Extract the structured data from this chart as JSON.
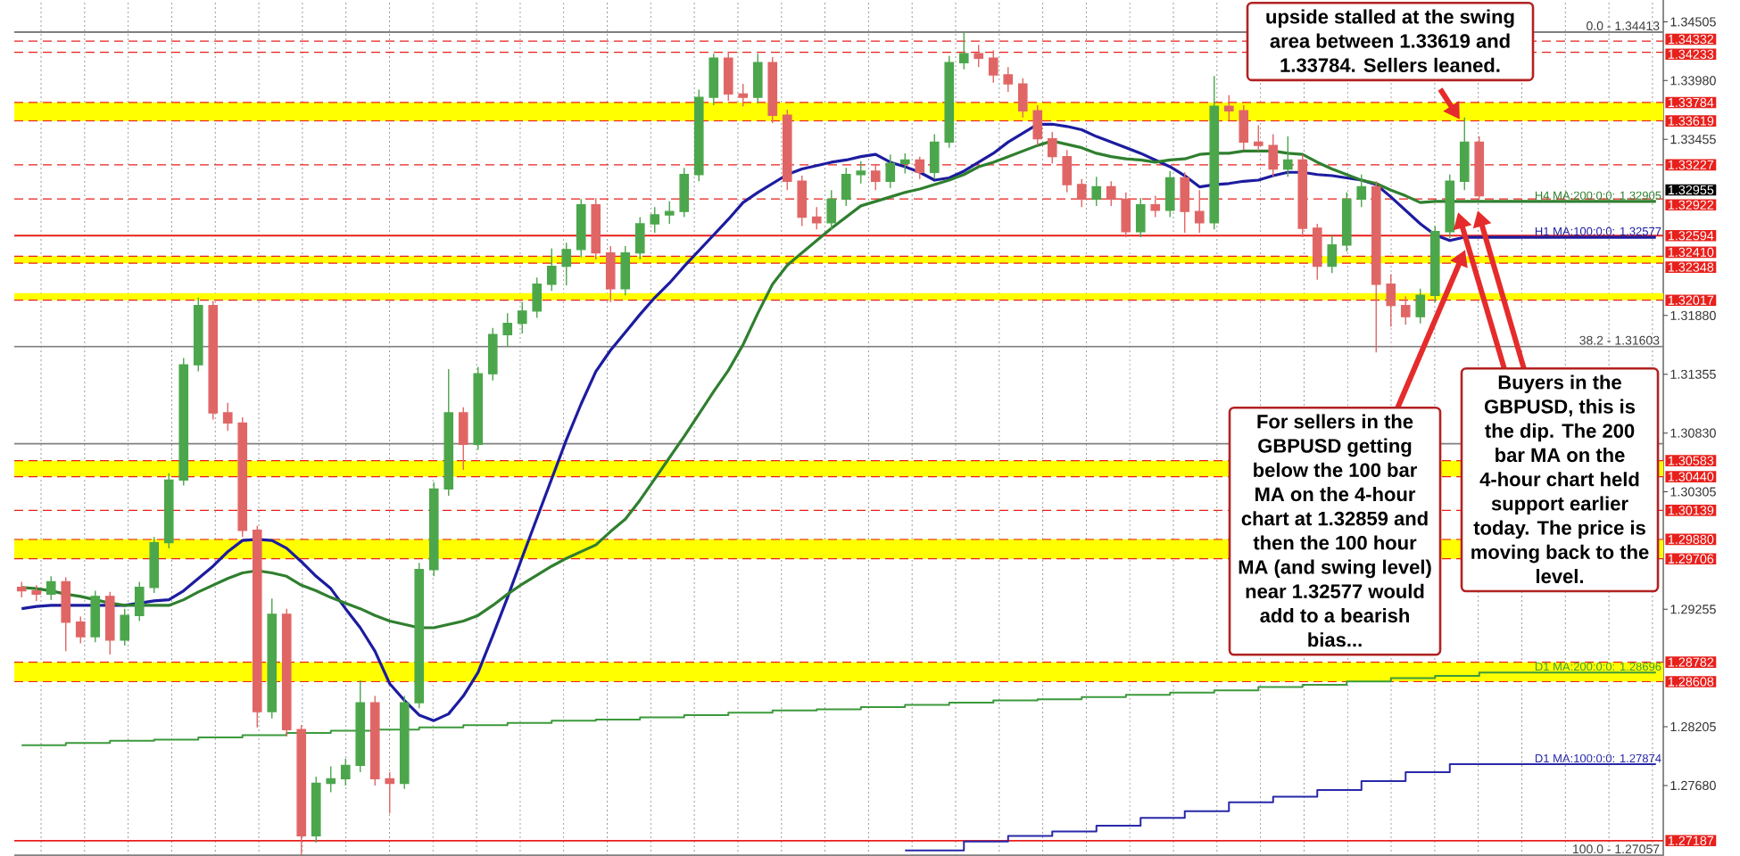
{
  "chart_data": {
    "type": "candlestick",
    "categories": [
      null,
      null,
      null,
      null,
      null,
      null,
      null,
      null,
      null,
      null,
      null,
      null,
      null,
      null,
      null,
      null,
      null,
      null,
      null,
      null,
      null,
      null,
      null,
      null,
      null,
      null,
      null,
      null,
      null,
      null,
      null,
      null,
      null,
      null,
      null,
      null,
      null,
      null,
      null,
      null,
      null,
      null,
      null,
      null,
      null,
      null,
      null,
      null,
      null,
      null,
      null,
      null,
      null,
      null,
      null,
      null,
      null,
      null,
      null,
      null,
      null,
      null,
      null,
      null,
      null,
      null,
      null,
      null,
      null,
      null,
      null,
      null,
      null,
      null,
      null,
      null,
      null,
      null,
      null,
      null,
      null,
      null,
      null,
      null,
      null,
      null,
      null,
      null,
      null,
      null,
      null,
      null,
      null,
      null,
      null,
      null,
      null,
      null,
      null,
      null,
      null,
      null,
      null,
      null,
      null,
      null,
      null,
      null,
      null,
      null,
      null,
      null
    ],
    "ohlc": [
      [
        1.2945,
        1.295,
        1.2936,
        1.2942
      ],
      [
        1.2942,
        1.2947,
        1.2933,
        1.2939
      ],
      [
        1.2939,
        1.2955,
        1.2934,
        1.295
      ],
      [
        1.295,
        1.2954,
        1.2888,
        1.2914
      ],
      [
        1.2914,
        1.2919,
        1.2895,
        1.2901
      ],
      [
        1.2901,
        1.2942,
        1.2896,
        1.2937
      ],
      [
        1.2937,
        1.2941,
        1.2885,
        1.2898
      ],
      [
        1.2898,
        1.2926,
        1.2893,
        1.292
      ],
      [
        1.292,
        1.295,
        1.2915,
        1.2945
      ],
      [
        1.2945,
        1.299,
        1.294,
        1.2985
      ],
      [
        1.2985,
        1.3047,
        1.298,
        1.3041
      ],
      [
        1.3041,
        1.315,
        1.3036,
        1.3144
      ],
      [
        1.3144,
        1.3204,
        1.3138,
        1.3197
      ],
      [
        1.3197,
        1.3201,
        1.3095,
        1.3101
      ],
      [
        1.3101,
        1.311,
        1.3085,
        1.3092
      ],
      [
        1.3092,
        1.3097,
        1.299,
        1.2996
      ],
      [
        1.2996,
        1.3,
        1.282,
        1.2834
      ],
      [
        1.2834,
        1.2935,
        1.2828,
        1.2921
      ],
      [
        1.2921,
        1.2926,
        1.2812,
        1.2818
      ],
      [
        1.2818,
        1.2822,
        1.2706,
        1.2723
      ],
      [
        1.2723,
        1.2776,
        1.2717,
        1.277
      ],
      [
        1.277,
        1.2785,
        1.2762,
        1.2774
      ],
      [
        1.2774,
        1.2792,
        1.2768,
        1.2786
      ],
      [
        1.2786,
        1.2862,
        1.278,
        1.2842
      ],
      [
        1.2842,
        1.2848,
        1.2768,
        1.2774
      ],
      [
        1.2774,
        1.278,
        1.2743,
        1.277
      ],
      [
        1.277,
        1.2848,
        1.2765,
        1.2842
      ],
      [
        1.2842,
        1.2967,
        1.2837,
        1.2961
      ],
      [
        1.2961,
        1.3039,
        1.2955,
        1.3033
      ],
      [
        1.3033,
        1.314,
        1.3027,
        1.3101
      ],
      [
        1.3101,
        1.3106,
        1.305,
        1.3073
      ],
      [
        1.3073,
        1.3142,
        1.3068,
        1.3136
      ],
      [
        1.3136,
        1.3177,
        1.313,
        1.3171
      ],
      [
        1.3171,
        1.319,
        1.316,
        1.3181
      ],
      [
        1.3181,
        1.32,
        1.3172,
        1.3192
      ],
      [
        1.3192,
        1.3222,
        1.3186,
        1.3216
      ],
      [
        1.3216,
        1.3248,
        1.321,
        1.3232
      ],
      [
        1.3232,
        1.3253,
        1.3215,
        1.3247
      ],
      [
        1.3247,
        1.3292,
        1.324,
        1.3287
      ],
      [
        1.3287,
        1.3293,
        1.3238,
        1.3244
      ],
      [
        1.3244,
        1.325,
        1.32,
        1.3212
      ],
      [
        1.3212,
        1.325,
        1.3206,
        1.3244
      ],
      [
        1.3244,
        1.3276,
        1.3238,
        1.327
      ],
      [
        1.327,
        1.3285,
        1.3262,
        1.3278
      ],
      [
        1.3278,
        1.329,
        1.327,
        1.3281
      ],
      [
        1.3281,
        1.332,
        1.3276,
        1.3314
      ],
      [
        1.3314,
        1.339,
        1.3308,
        1.3383
      ],
      [
        1.3383,
        1.3422,
        1.3376,
        1.3418
      ],
      [
        1.3418,
        1.3424,
        1.338,
        1.3386
      ],
      [
        1.3386,
        1.3395,
        1.3375,
        1.3383
      ],
      [
        1.3383,
        1.3422,
        1.3378,
        1.3414
      ],
      [
        1.3414,
        1.3419,
        1.336,
        1.3367
      ],
      [
        1.3367,
        1.3372,
        1.33,
        1.3308
      ],
      [
        1.3308,
        1.3313,
        1.3268,
        1.3276
      ],
      [
        1.3276,
        1.3285,
        1.3265,
        1.3271
      ],
      [
        1.3271,
        1.33,
        1.3265,
        1.3292
      ],
      [
        1.3292,
        1.332,
        1.3286,
        1.3314
      ],
      [
        1.3314,
        1.3326,
        1.3306,
        1.3317
      ],
      [
        1.3317,
        1.3323,
        1.33,
        1.3308
      ],
      [
        1.3308,
        1.3332,
        1.3302,
        1.3324
      ],
      [
        1.3324,
        1.3333,
        1.3315,
        1.3327
      ],
      [
        1.3327,
        1.333,
        1.331,
        1.3316
      ],
      [
        1.3316,
        1.335,
        1.331,
        1.3343
      ],
      [
        1.3343,
        1.342,
        1.3338,
        1.3414
      ],
      [
        1.3414,
        1.3441,
        1.3408,
        1.3422
      ],
      [
        1.3422,
        1.343,
        1.341,
        1.3418
      ],
      [
        1.3418,
        1.3425,
        1.3396,
        1.3403
      ],
      [
        1.3403,
        1.341,
        1.3388,
        1.3395
      ],
      [
        1.3395,
        1.34,
        1.3365,
        1.3371
      ],
      [
        1.3371,
        1.3376,
        1.334,
        1.3346
      ],
      [
        1.3346,
        1.3352,
        1.3324,
        1.333
      ],
      [
        1.333,
        1.3336,
        1.3298,
        1.3305
      ],
      [
        1.3305,
        1.331,
        1.3285,
        1.3292
      ],
      [
        1.3292,
        1.3312,
        1.3286,
        1.3303
      ],
      [
        1.3303,
        1.3308,
        1.3286,
        1.3292
      ],
      [
        1.3292,
        1.3298,
        1.3258,
        1.3263
      ],
      [
        1.3263,
        1.3293,
        1.3258,
        1.3287
      ],
      [
        1.3287,
        1.3295,
        1.3276,
        1.3282
      ],
      [
        1.3282,
        1.3317,
        1.3276,
        1.3311
      ],
      [
        1.3311,
        1.3316,
        1.3262,
        1.3281
      ],
      [
        1.3281,
        1.33,
        1.3262,
        1.3271
      ],
      [
        1.3271,
        1.3402,
        1.3265,
        1.3375
      ],
      [
        1.3375,
        1.3385,
        1.3362,
        1.3371
      ],
      [
        1.3371,
        1.3376,
        1.3336,
        1.3343
      ],
      [
        1.3343,
        1.3358,
        1.3335,
        1.334
      ],
      [
        1.334,
        1.335,
        1.3312,
        1.3319
      ],
      [
        1.3319,
        1.3348,
        1.3312,
        1.3327
      ],
      [
        1.3327,
        1.3332,
        1.3258,
        1.3266
      ],
      [
        1.3266,
        1.327,
        1.322,
        1.3232
      ],
      [
        1.3232,
        1.326,
        1.3226,
        1.3251
      ],
      [
        1.3251,
        1.3298,
        1.3245,
        1.3292
      ],
      [
        1.3292,
        1.3314,
        1.3285,
        1.3303
      ],
      [
        1.3303,
        1.3308,
        1.3155,
        1.3216
      ],
      [
        1.3216,
        1.3225,
        1.3178,
        1.3197
      ],
      [
        1.3197,
        1.3205,
        1.318,
        1.3187
      ],
      [
        1.3187,
        1.3212,
        1.3181,
        1.3206
      ],
      [
        1.3206,
        1.3268,
        1.32,
        1.3263
      ],
      [
        1.3263,
        1.3314,
        1.3257,
        1.3308
      ],
      [
        1.3308,
        1.3365,
        1.33,
        1.3343
      ],
      [
        1.3343,
        1.3348,
        1.3292,
        1.3295
      ],
      null,
      null,
      null,
      null,
      null,
      null,
      null,
      null,
      null,
      null,
      null,
      null
    ],
    "colors": [
      "#e06666",
      "#e06666",
      "#4ca64c",
      "#e06666",
      "#e06666",
      "#4ca64c",
      "#e06666",
      "#4ca64c",
      "#4ca64c",
      "#4ca64c",
      "#4ca64c",
      "#4ca64c",
      "#4ca64c",
      "#e06666",
      "#e06666",
      "#e06666",
      "#e06666",
      "#4ca64c",
      "#e06666",
      "#e06666",
      "#4ca64c",
      "#4ca64c",
      "#4ca64c",
      "#4ca64c",
      "#e06666",
      "#e06666",
      "#4ca64c",
      "#4ca64c",
      "#4ca64c",
      "#4ca64c",
      "#e06666",
      "#4ca64c",
      "#4ca64c",
      "#4ca64c",
      "#4ca64c",
      "#4ca64c",
      "#4ca64c",
      "#4ca64c",
      "#4ca64c",
      "#e06666",
      "#e06666",
      "#4ca64c",
      "#4ca64c",
      "#4ca64c",
      "#4ca64c",
      "#4ca64c",
      "#4ca64c",
      "#4ca64c",
      "#e06666",
      "#e06666",
      "#4ca64c",
      "#e06666",
      "#e06666",
      "#e06666",
      "#e06666",
      "#4ca64c",
      "#4ca64c",
      "#4ca64c",
      "#e06666",
      "#4ca64c",
      "#4ca64c",
      "#e06666",
      "#4ca64c",
      "#4ca64c",
      "#4ca64c",
      "#e06666",
      "#e06666",
      "#e06666",
      "#e06666",
      "#e06666",
      "#e06666",
      "#e06666",
      "#e06666",
      "#4ca64c",
      "#e06666",
      "#e06666",
      "#4ca64c",
      "#e06666",
      "#4ca64c",
      "#e06666",
      "#e06666",
      "#4ca64c",
      "#e06666",
      "#e06666",
      "#e06666",
      "#e06666",
      "#4ca64c",
      "#e06666",
      "#e06666",
      "#4ca64c",
      "#4ca64c",
      "#4ca64c",
      "#e06666",
      "#e06666",
      "#e06666",
      "#4ca64c",
      "#4ca64c",
      "#4ca64c",
      "#4ca64c",
      "#e06666",
      null,
      null,
      null,
      null,
      null,
      null,
      null,
      null,
      null,
      null,
      null,
      null
    ],
    "series": [
      {
        "name": "H1 MA:100:0:0: 1.32577",
        "type": "line",
        "color": "#1c1ca0",
        "values": [
          1.2926,
          1.2928,
          1.2929,
          1.2929,
          1.2929,
          1.2929,
          1.2929,
          1.2929,
          1.2931,
          1.2933,
          1.2934,
          1.2942,
          1.2953,
          1.2964,
          1.2977,
          1.2987,
          1.2988,
          1.2987,
          1.298,
          1.2968,
          1.2955,
          1.2944,
          1.2926,
          1.2909,
          1.2888,
          1.2859,
          1.2844,
          1.2831,
          1.2826,
          1.2832,
          1.2848,
          1.2869,
          1.2902,
          1.2936,
          1.2972,
          1.3007,
          1.3042,
          1.3077,
          1.3109,
          1.3138,
          1.3157,
          1.3173,
          1.3189,
          1.3204,
          1.3217,
          1.3232,
          1.3246,
          1.326,
          1.3274,
          1.3289,
          1.3298,
          1.3306,
          1.3314,
          1.3319,
          1.3322,
          1.3325,
          1.3327,
          1.333,
          1.3332,
          1.3325,
          1.3321,
          1.3316,
          1.3309,
          1.3311,
          1.3317,
          1.3325,
          1.3333,
          1.3343,
          1.3351,
          1.3359,
          1.3359,
          1.3357,
          1.3354,
          1.3348,
          1.3343,
          1.3338,
          1.3333,
          1.3327,
          1.3321,
          1.3313,
          1.3303,
          1.3305,
          1.3306,
          1.3308,
          1.3309,
          1.3313,
          1.3316,
          1.3316,
          1.3314,
          1.3313,
          1.3311,
          1.3309,
          1.3305,
          1.3294,
          1.3282,
          1.327,
          1.326,
          1.3255,
          1.3258,
          1.3258,
          1.3258,
          1.3258,
          1.3258,
          1.3258,
          1.3258,
          1.3258,
          1.3258,
          1.3258,
          1.3258,
          1.3258,
          1.3258,
          1.3258
        ]
      },
      {
        "name": "H4 MA:200:0:0: 1.32905",
        "type": "line",
        "color": "#2f7f2f",
        "values": [
          1.2945,
          1.2944,
          1.2942,
          1.2939,
          1.2937,
          1.2934,
          1.2931,
          1.2929,
          1.2929,
          1.2929,
          1.2929,
          1.2934,
          1.2941,
          1.2947,
          1.2953,
          1.2958,
          1.296,
          1.2958,
          1.2955,
          1.2947,
          1.2942,
          1.2936,
          1.2931,
          1.2926,
          1.292,
          1.2915,
          1.2912,
          1.2909,
          1.2909,
          1.2912,
          1.2915,
          1.292,
          1.2929,
          1.2939,
          1.2948,
          1.2956,
          1.2964,
          1.2971,
          1.2977,
          1.2983,
          1.2995,
          1.3006,
          1.3023,
          1.3042,
          1.3061,
          1.308,
          1.31,
          1.312,
          1.3139,
          1.3162,
          1.319,
          1.3216,
          1.3233,
          1.3244,
          1.3255,
          1.3266,
          1.3276,
          1.3286,
          1.329,
          1.3294,
          1.3298,
          1.3301,
          1.3305,
          1.3309,
          1.3314,
          1.3321,
          1.3325,
          1.333,
          1.3335,
          1.334,
          1.3344,
          1.3341,
          1.3338,
          1.3333,
          1.333,
          1.3328,
          1.3327,
          1.3325,
          1.3327,
          1.3328,
          1.3332,
          1.3333,
          1.3333,
          1.3335,
          1.3335,
          1.3335,
          1.3333,
          1.3332,
          1.3325,
          1.3319,
          1.3314,
          1.3309,
          1.3306,
          1.33,
          1.3295,
          1.3289,
          1.329,
          1.329,
          1.329,
          1.329,
          1.329,
          1.329,
          1.329,
          1.329,
          1.329,
          1.329,
          1.329,
          1.329,
          1.329,
          1.329,
          1.329,
          1.329
        ]
      },
      {
        "name": "D1 MA:200:0:0: 1.28696",
        "type": "step",
        "color": "#3c9a3c",
        "values": [
          1.2804,
          1.2804,
          1.2804,
          1.2806,
          1.2806,
          1.2806,
          1.2808,
          1.2808,
          1.2808,
          1.2809,
          1.2809,
          1.2809,
          1.2811,
          1.2811,
          1.2811,
          1.2813,
          1.2813,
          1.2813,
          1.2815,
          1.2815,
          1.2815,
          1.2817,
          1.2817,
          1.2817,
          1.2818,
          1.2818,
          1.2818,
          1.282,
          1.282,
          1.282,
          1.2822,
          1.2822,
          1.2822,
          1.2824,
          1.2824,
          1.2824,
          1.2826,
          1.2826,
          1.2826,
          1.2827,
          1.2827,
          1.2827,
          1.2829,
          1.2829,
          1.2829,
          1.2831,
          1.2831,
          1.2831,
          1.2833,
          1.2833,
          1.2833,
          1.2835,
          1.2835,
          1.2835,
          1.2836,
          1.2836,
          1.2836,
          1.2838,
          1.2838,
          1.2838,
          1.284,
          1.284,
          1.284,
          1.2842,
          1.2842,
          1.2842,
          1.2844,
          1.2844,
          1.2844,
          1.2845,
          1.2845,
          1.2845,
          1.2847,
          1.2847,
          1.2847,
          1.2849,
          1.2849,
          1.2849,
          1.2851,
          1.2851,
          1.2851,
          1.2853,
          1.2853,
          1.2853,
          1.2856,
          1.2856,
          1.2856,
          1.2858,
          1.2858,
          1.2858,
          1.2861,
          1.2861,
          1.2861,
          1.2864,
          1.2864,
          1.2864,
          1.2866,
          1.2866,
          1.2866,
          1.2869,
          1.2869,
          1.2869,
          1.2869,
          1.2869,
          1.2869,
          1.2869,
          1.2869,
          1.2869,
          1.2869,
          1.2869,
          1.2869,
          1.2869
        ]
      },
      {
        "name": "D1 MA:100:0:0: 1.27874",
        "type": "step",
        "color": "#2828a8",
        "values": [
          null,
          null,
          null,
          null,
          null,
          null,
          null,
          null,
          null,
          null,
          null,
          null,
          null,
          null,
          null,
          null,
          null,
          null,
          null,
          null,
          null,
          null,
          null,
          null,
          null,
          null,
          null,
          null,
          null,
          null,
          null,
          null,
          null,
          null,
          null,
          null,
          null,
          null,
          null,
          null,
          null,
          null,
          null,
          null,
          null,
          null,
          null,
          null,
          null,
          null,
          null,
          null,
          null,
          null,
          null,
          null,
          null,
          null,
          null,
          null,
          1.271,
          1.271,
          1.271,
          1.271,
          1.2718,
          1.2718,
          1.2718,
          1.2723,
          1.2723,
          1.2723,
          1.2727,
          1.2727,
          1.2727,
          1.2732,
          1.2732,
          1.2732,
          1.2739,
          1.2739,
          1.2739,
          1.2745,
          1.2745,
          1.2745,
          1.2753,
          1.2753,
          1.2753,
          1.2758,
          1.2758,
          1.2758,
          1.2764,
          1.2764,
          1.2764,
          1.2772,
          1.2772,
          1.2772,
          1.278,
          1.278,
          1.278,
          1.2787,
          1.2787,
          1.2787,
          1.2787,
          1.2787,
          1.2787,
          1.2787,
          1.2787,
          1.2787,
          1.2787,
          1.2787,
          1.2787,
          1.2787,
          1.2787,
          1.2787
        ]
      }
    ],
    "ylim": [
      1.2705,
      1.347
    ],
    "yticks": [
      1.34505,
      {
        "value": 1.3398,
        "label": "1.33980"
      },
      1.33455,
      {
        "value": 1.3188,
        "label": "1.31880"
      },
      1.31355,
      {
        "value": 1.3083,
        "label": "1.30830"
      },
      1.30305,
      1.29255,
      1.28205,
      {
        "value": 1.2768,
        "label": "1.27680"
      }
    ],
    "tick_labels": "y",
    "grid": "x",
    "bands": [
      {
        "axis": "y",
        "from": 1.33619,
        "to": 1.33784,
        "color": "#ffff00"
      },
      {
        "axis": "y",
        "from": 1.32348,
        "to": 1.3241,
        "color": "#ffff00"
      },
      {
        "axis": "y",
        "from": 1.32017,
        "to": 1.3208,
        "color": "#ffff00"
      },
      {
        "axis": "y",
        "from": 1.3044,
        "to": 1.30583,
        "color": "#ffff00"
      },
      {
        "axis": "y",
        "from": 1.29706,
        "to": 1.2988,
        "color": "#ffff00"
      },
      {
        "axis": "y",
        "from": 1.28608,
        "to": 1.28782,
        "color": "#ffff00"
      }
    ],
    "ref_lines": [
      {
        "axis": "y",
        "value": 1.34413,
        "color": "#808080",
        "line_style": "solid"
      },
      {
        "axis": "y",
        "value": 1.31603,
        "color": "#808080",
        "line_style": "solid"
      },
      {
        "axis": "y",
        "value": 1.30735,
        "color": "#808080",
        "line_style": "solid"
      },
      {
        "axis": "y",
        "value": 1.27057,
        "color": "#808080",
        "line_style": "solid"
      },
      {
        "axis": "y",
        "value": 1.34332,
        "label": "1.34332",
        "color": "#e8201c",
        "line_style": "dashed"
      },
      {
        "axis": "y",
        "value": 1.34233,
        "label": "1.34233",
        "color": "#e8201c",
        "line_style": "dashed"
      },
      {
        "axis": "y",
        "value": 1.33784,
        "label": "1.33784",
        "color": "#e8201c",
        "line_style": "dashed"
      },
      {
        "axis": "y",
        "value": 1.33619,
        "label": "1.33619",
        "color": "#e8201c",
        "line_style": "dashed"
      },
      {
        "axis": "y",
        "value": 1.33227,
        "label": "1.33227",
        "color": "#e8201c",
        "line_style": "dashed"
      },
      {
        "axis": "y",
        "value": 1.32922,
        "label": "1.32922",
        "color": "#e8201c",
        "line_style": "dashed"
      },
      {
        "axis": "y",
        "value": 1.32594,
        "label": "1.32594",
        "color": "#e8201c",
        "line_style": "solid"
      },
      {
        "axis": "y",
        "value": 1.3241,
        "label": "1.32410",
        "color": "#e8201c",
        "line_style": "dashed"
      },
      {
        "axis": "y",
        "value": 1.32348,
        "label": "1.32348",
        "color": "#e8201c",
        "line_style": "dashed"
      },
      {
        "axis": "y",
        "value": 1.32017,
        "label": "1.32017",
        "color": "#e8201c",
        "line_style": "dashed"
      },
      {
        "axis": "y",
        "value": 1.30583,
        "label": "1.30583",
        "color": "#e8201c",
        "line_style": "dashed"
      },
      {
        "axis": "y",
        "value": 1.3044,
        "label": "1.30440",
        "color": "#e8201c",
        "line_style": "dashed"
      },
      {
        "axis": "y",
        "value": 1.30139,
        "label": "1.30139",
        "color": "#e8201c",
        "line_style": "dashed"
      },
      {
        "axis": "y",
        "value": 1.2988,
        "label": "1.29880",
        "color": "#e8201c",
        "line_style": "dashed"
      },
      {
        "axis": "y",
        "value": 1.29706,
        "label": "1.29706",
        "color": "#e8201c",
        "line_style": "dashed"
      },
      {
        "axis": "y",
        "value": 1.28782,
        "label": "1.28782",
        "color": "#e8201c",
        "line_style": "dashed"
      },
      {
        "axis": "y",
        "value": 1.28608,
        "label": "1.28608",
        "color": "#e8201c",
        "line_style": "dashed"
      },
      {
        "axis": "y",
        "value": 1.27187,
        "label": "1.27187",
        "color": "#e8201c",
        "line_style": "solid"
      }
    ],
    "annotations": [
      "upside stalled at the swing area between 1.33619 and 1.33784. Sellers leaned.",
      "For sellers in the GBPUSD getting below the 100 bar MA on the 4-hour chart at 1.32859 and then the 100 hour MA (and swing level) near 1.32577 would add to a bearish bias...",
      "Buyers in the GBPUSD, this is the dip. The 200 bar MA on the 4-hour chart held support earlier today. The price is moving back to the level.",
      {
        "text": "0.0 - 1.34413",
        "y": 1.34413
      },
      {
        "text": "38.2 - 1.31603",
        "y": 1.31603
      },
      {
        "text": "100.0 - 1.27057",
        "y": 1.27057
      },
      "1.32955"
    ]
  }
}
